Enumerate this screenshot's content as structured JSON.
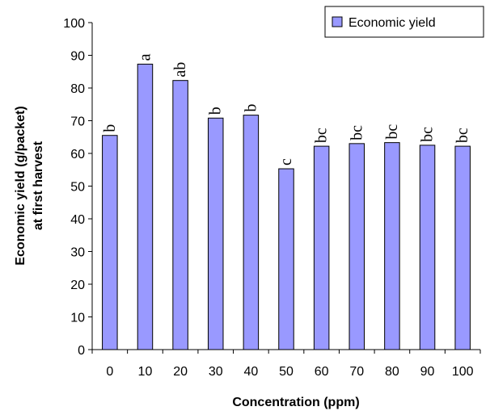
{
  "chart_data": {
    "type": "bar",
    "categories": [
      "0",
      "10",
      "20",
      "30",
      "40",
      "50",
      "60",
      "70",
      "80",
      "90",
      "100"
    ],
    "series": [
      {
        "name": "Economic yield",
        "values": [
          65.5,
          87.3,
          82.3,
          70.8,
          71.7,
          55.3,
          62.2,
          63,
          63.3,
          62.5,
          62.2
        ],
        "significance_labels": [
          "b",
          "a",
          "ab",
          "b",
          "b",
          "c",
          "bc",
          "bc",
          "bc",
          "bc",
          "bc"
        ]
      }
    ],
    "xlabel": "Concentration (ppm)",
    "ylabel_line1": "Economic yield (g/packet)",
    "ylabel_line2": "at first harvest",
    "ylim": [
      0,
      100
    ],
    "yticks": [
      0,
      10,
      20,
      30,
      40,
      50,
      60,
      70,
      80,
      90,
      100
    ],
    "grid": false,
    "legend_position": "top-right",
    "colors": {
      "bar_fill": "#9999ff",
      "bar_stroke": "#000000"
    }
  }
}
